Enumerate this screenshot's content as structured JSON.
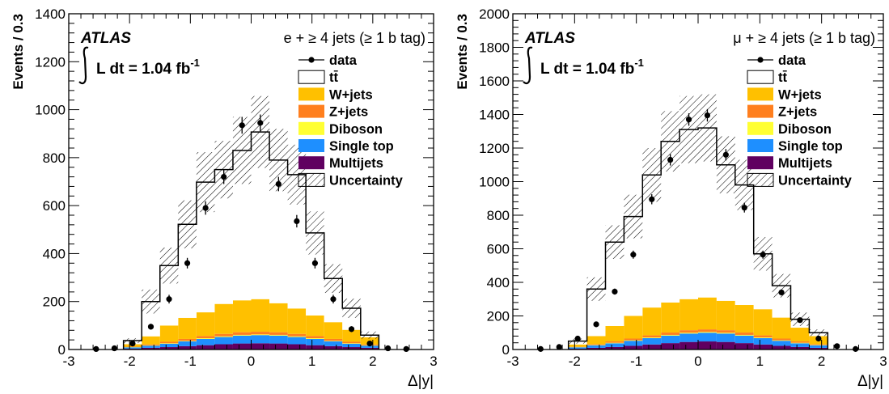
{
  "chart_data": [
    {
      "type": "bar",
      "atlas_label": "ATLAS",
      "lumi_label": "L dt = 1.04 fb",
      "lumi_sup": "-1",
      "channel_label": "e + ≥ 4 jets (≥ 1 b tag)",
      "xlabel": "Δ|y|",
      "ylabel": "Events / 0.3",
      "xlim": [
        -3,
        3
      ],
      "ylim": [
        0,
        1400
      ],
      "x_ticks": [
        "-3",
        "-2",
        "-1",
        "0",
        "1",
        "2",
        "3"
      ],
      "y_ticks": [
        "0",
        "200",
        "400",
        "600",
        "800",
        "1000",
        "1200",
        "1400"
      ],
      "legend": [
        "data",
        "tt̄",
        "W+jets",
        "Z+jets",
        "Diboson",
        "Single top",
        "Multijets",
        "Uncertainty"
      ],
      "bin_edges": [
        -2.1,
        -1.8,
        -1.5,
        -1.2,
        -0.9,
        -0.6,
        -0.3,
        0.0,
        0.3,
        0.6,
        0.9,
        1.2,
        1.5,
        1.8,
        2.1
      ],
      "stack": {
        "Multijets": [
          4,
          7,
          10,
          14,
          18,
          22,
          25,
          26,
          25,
          22,
          18,
          14,
          10,
          7
        ],
        "Single top": [
          5,
          9,
          14,
          20,
          26,
          30,
          33,
          34,
          33,
          30,
          26,
          20,
          14,
          9
        ],
        "Diboson": [
          1,
          1,
          2,
          2,
          3,
          3,
          3,
          3,
          3,
          3,
          3,
          2,
          2,
          1
        ],
        "Z+jets": [
          2,
          4,
          6,
          8,
          9,
          10,
          11,
          11,
          11,
          10,
          9,
          8,
          6,
          4
        ],
        "W+jets": [
          10,
          34,
          68,
          88,
          99,
          125,
          133,
          136,
          121,
          106,
          86,
          70,
          50,
          30
        ],
        "tt̄": [
          15,
          145,
          250,
          390,
          543,
          560,
          625,
          697,
          597,
          558,
          344,
          182,
          90,
          9
        ]
      },
      "total": [
        37,
        200,
        350,
        522,
        698,
        750,
        830,
        907,
        790,
        729,
        486,
        296,
        172,
        60
      ],
      "uncertainty": [
        10,
        50,
        75,
        100,
        125,
        120,
        140,
        150,
        130,
        125,
        90,
        60,
        40,
        15
      ],
      "data_x": [
        -2.55,
        -2.25,
        -1.95,
        -1.65,
        -1.35,
        -1.05,
        -0.75,
        -0.45,
        -0.15,
        0.15,
        0.45,
        0.75,
        1.05,
        1.35,
        1.65,
        1.95,
        2.25,
        2.55
      ],
      "data_y": [
        2,
        5,
        25,
        95,
        210,
        360,
        590,
        720,
        935,
        945,
        690,
        535,
        360,
        210,
        85,
        25,
        5,
        2
      ],
      "data_err": [
        2,
        3,
        6,
        12,
        18,
        22,
        28,
        30,
        35,
        35,
        30,
        26,
        22,
        18,
        12,
        6,
        3,
        2
      ]
    },
    {
      "type": "bar",
      "atlas_label": "ATLAS",
      "lumi_label": "L dt = 1.04 fb",
      "lumi_sup": "-1",
      "channel_label": "μ + ≥ 4 jets (≥ 1 b tag)",
      "xlabel": "Δ|y|",
      "ylabel": "Events / 0.3",
      "xlim": [
        -3,
        3
      ],
      "ylim": [
        0,
        2000
      ],
      "x_ticks": [
        "-3",
        "-2",
        "-1",
        "0",
        "1",
        "2",
        "3"
      ],
      "y_ticks": [
        "0",
        "200",
        "400",
        "600",
        "800",
        "1000",
        "1200",
        "1400",
        "1600",
        "1800",
        "2000"
      ],
      "legend": [
        "data",
        "tt̄",
        "W+jets",
        "Z+jets",
        "Diboson",
        "Single top",
        "Multijets",
        "Uncertainty"
      ],
      "bin_edges": [
        -2.1,
        -1.8,
        -1.5,
        -1.2,
        -0.9,
        -0.6,
        -0.3,
        0.0,
        0.3,
        0.6,
        0.9,
        1.2,
        1.5,
        1.8,
        2.1
      ],
      "stack": {
        "Multijets": [
          5,
          10,
          15,
          22,
          30,
          38,
          45,
          48,
          45,
          38,
          30,
          22,
          15,
          10
        ],
        "Single top": [
          8,
          15,
          22,
          30,
          38,
          45,
          50,
          52,
          50,
          45,
          38,
          30,
          22,
          15
        ],
        "Diboson": [
          1,
          2,
          3,
          3,
          4,
          4,
          5,
          5,
          5,
          4,
          4,
          3,
          3,
          2
        ],
        "Z+jets": [
          2,
          5,
          8,
          10,
          12,
          14,
          15,
          15,
          15,
          14,
          12,
          10,
          8,
          5
        ],
        "W+jets": [
          14,
          48,
          92,
          135,
          166,
          179,
          185,
          190,
          175,
          164,
          156,
          125,
          82,
          48
        ],
        "tt̄": [
          20,
          280,
          500,
          592,
          790,
          960,
          1010,
          1010,
          810,
          715,
          330,
          190,
          50,
          20
        ]
      },
      "total": [
        50,
        360,
        640,
        792,
        1040,
        1240,
        1310,
        1320,
        1100,
        980,
        570,
        380,
        180,
        100
      ],
      "uncertainty": [
        15,
        70,
        100,
        130,
        160,
        180,
        200,
        200,
        170,
        150,
        100,
        70,
        40,
        20
      ],
      "data_x": [
        -2.55,
        -2.25,
        -1.95,
        -1.65,
        -1.35,
        -1.05,
        -0.75,
        -0.45,
        -0.15,
        0.15,
        0.45,
        0.75,
        1.05,
        1.35,
        1.65,
        1.95,
        2.25,
        2.55
      ],
      "data_y": [
        3,
        15,
        65,
        150,
        345,
        565,
        895,
        1130,
        1370,
        1395,
        1160,
        845,
        565,
        340,
        175,
        65,
        20,
        3
      ],
      "data_err": [
        2,
        4,
        8,
        12,
        18,
        24,
        30,
        34,
        37,
        37,
        34,
        29,
        24,
        18,
        13,
        8,
        4,
        2
      ]
    }
  ],
  "colors": {
    "tt̄": "#ffffff",
    "W+jets": "#ffc000",
    "Z+jets": "#ff7f1e",
    "Diboson": "#ffff33",
    "Single top": "#1e8fff",
    "Multijets": "#600060"
  }
}
